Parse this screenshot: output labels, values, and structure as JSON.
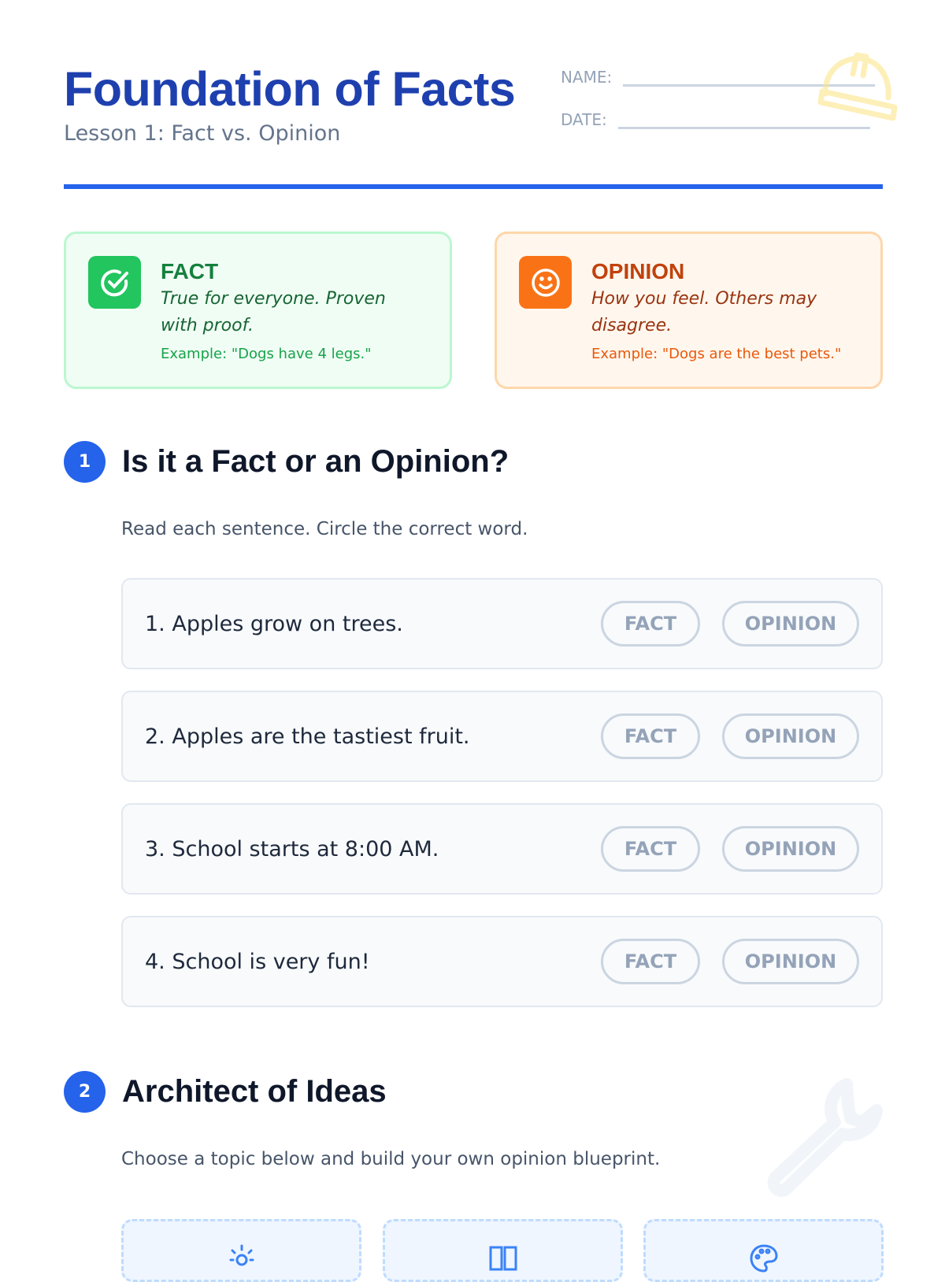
{
  "header": {
    "title": "Foundation of Facts",
    "subtitle": "Lesson 1: Fact vs. Opinion",
    "name_label": "NAME:",
    "date_label": "DATE:"
  },
  "cards": {
    "fact": {
      "title": "FACT",
      "definition": "True for everyone. Proven with proof.",
      "example": "Example: \"Dogs have 4 legs.\"",
      "color": "#22c55e",
      "icon": "check-circle-icon"
    },
    "opinion": {
      "title": "OPINION",
      "definition": "How you feel. Others may disagree.",
      "example": "Example: \"Dogs are the best pets.\"",
      "color": "#f97316",
      "icon": "smile-icon"
    }
  },
  "section1": {
    "number": "1",
    "title": "Is it a Fact or an Opinion?",
    "instructions": "Read each sentence. Circle the correct word.",
    "fact_label": "FACT",
    "opinion_label": "OPINION",
    "questions": [
      "1. Apples grow on trees.",
      "2. Apples are the tastiest fruit.",
      "3. School starts at 8:00 AM.",
      "4. School is very fun!"
    ]
  },
  "section2": {
    "number": "2",
    "title": "Architect of Ideas",
    "instructions": "Choose a topic below and build your own opinion blueprint.",
    "topics": [
      {
        "icon": "sun-icon"
      },
      {
        "icon": "book-icon"
      },
      {
        "icon": "palette-icon"
      }
    ]
  },
  "accent": "#2563eb"
}
